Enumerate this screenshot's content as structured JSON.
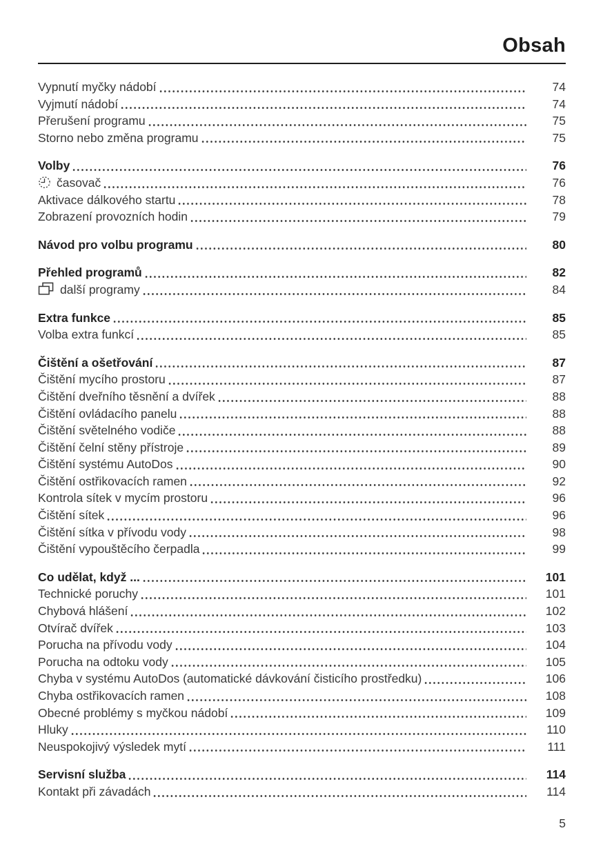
{
  "header": {
    "title": "Obsah"
  },
  "footer": {
    "page_number": "5"
  },
  "toc": {
    "groups": [
      {
        "items": [
          {
            "label": "Vypnutí myčky nádobí",
            "page": "74"
          },
          {
            "label": "Vyjmutí nádobí",
            "page": "74"
          },
          {
            "label": "Přerušení programu",
            "page": "75"
          },
          {
            "label": "Storno nebo změna programu",
            "page": "75"
          }
        ]
      },
      {
        "items": [
          {
            "label": "Volby",
            "page": "76",
            "bold": true
          },
          {
            "label": "časovač",
            "page": "76",
            "icon": "timer-icon"
          },
          {
            "label": "Aktivace dálkového startu",
            "page": "78"
          },
          {
            "label": "Zobrazení provozních hodin",
            "page": "79"
          }
        ]
      },
      {
        "items": [
          {
            "label": "Návod pro volbu programu",
            "page": "80",
            "bold": true
          }
        ]
      },
      {
        "items": [
          {
            "label": "Přehled programů",
            "page": "82",
            "bold": true
          },
          {
            "label": "další programy",
            "page": "84",
            "icon": "programs-icon"
          }
        ]
      },
      {
        "items": [
          {
            "label": "Extra funkce",
            "page": "85",
            "bold": true
          },
          {
            "label": "Volba extra funkcí",
            "page": "85"
          }
        ]
      },
      {
        "items": [
          {
            "label": "Čištění a ošetřování",
            "page": "87",
            "bold": true
          },
          {
            "label": "Čištění mycího prostoru",
            "page": "87"
          },
          {
            "label": "Čištění dveřního těsnění a dvířek",
            "page": "88"
          },
          {
            "label": "Čištění ovládacího panelu",
            "page": "88"
          },
          {
            "label": "Čištění světelného vodiče",
            "page": "88"
          },
          {
            "label": "Čištění čelní stěny přístroje",
            "page": "89"
          },
          {
            "label": "Čištění systému AutoDos",
            "page": "90"
          },
          {
            "label": "Čištění ostřikovacích ramen",
            "page": "92"
          },
          {
            "label": "Kontrola sítek v mycím prostoru",
            "page": "96"
          },
          {
            "label": "Čištění sítek",
            "page": "96"
          },
          {
            "label": "Čištění sítka v přívodu vody",
            "page": "98"
          },
          {
            "label": "Čištění vypouštěcího čerpadla",
            "page": "99"
          }
        ]
      },
      {
        "items": [
          {
            "label": "Co udělat, když ...",
            "page": "101",
            "bold": true
          },
          {
            "label": "Technické poruchy",
            "page": "101"
          },
          {
            "label": "Chybová hlášení",
            "page": "102"
          },
          {
            "label": "Otvírač dvířek",
            "page": "103"
          },
          {
            "label": "Porucha na přívodu vody",
            "page": "104"
          },
          {
            "label": "Porucha na odtoku vody",
            "page": "105"
          },
          {
            "label": "Chyba v systému AutoDos (automatické dávkování čisticího prostředku)",
            "page": "106"
          },
          {
            "label": "Chyba ostřikovacích ramen",
            "page": "108"
          },
          {
            "label": "Obecné problémy s myčkou nádobí",
            "page": "109"
          },
          {
            "label": "Hluky",
            "page": "110"
          },
          {
            "label": "Neuspokojivý výsledek mytí",
            "page": "111"
          }
        ]
      },
      {
        "items": [
          {
            "label": "Servisní služba",
            "page": "114",
            "bold": true
          },
          {
            "label": "Kontakt při závadách",
            "page": "114"
          }
        ]
      }
    ]
  },
  "icons": {
    "timer-icon": "clock-timer symbol",
    "programs-icon": "stacked-pages symbol"
  }
}
